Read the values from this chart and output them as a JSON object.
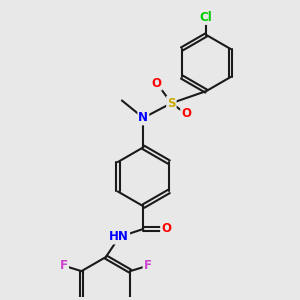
{
  "background_color": "#e8e8e8",
  "bond_color": "#1a1a1a",
  "bond_width": 1.5,
  "atom_colors": {
    "N": "#0000ff",
    "O": "#ff0000",
    "S": "#ccaa00",
    "Cl": "#00cc00",
    "F": "#cc44cc",
    "H": "#888888",
    "C": "#1a1a1a"
  },
  "font_size": 8.5
}
